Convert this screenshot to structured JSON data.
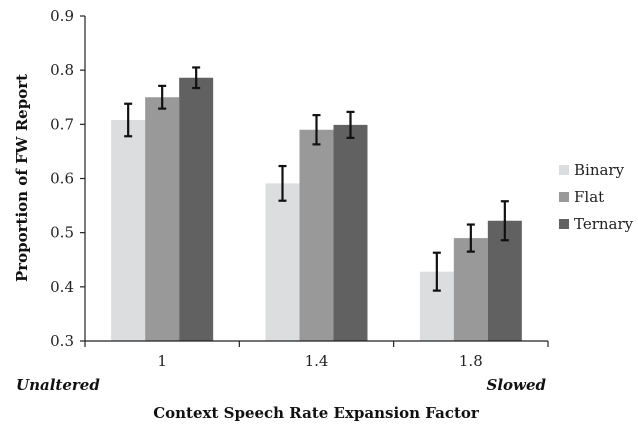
{
  "chart_data": {
    "type": "bar",
    "categories": [
      "1",
      "1.4",
      "1.8"
    ],
    "series": [
      {
        "name": "Binary",
        "color": "#dcdddf",
        "values": [
          0.708,
          0.591,
          0.428
        ],
        "error": [
          0.03,
          0.032,
          0.035
        ]
      },
      {
        "name": "Flat",
        "color": "#999999",
        "values": [
          0.75,
          0.69,
          0.49
        ],
        "error": [
          0.021,
          0.027,
          0.025
        ]
      },
      {
        "name": "Ternary",
        "color": "#616161",
        "values": [
          0.786,
          0.699,
          0.522
        ],
        "error": [
          0.019,
          0.024,
          0.036
        ]
      }
    ],
    "ylim": [
      0.3,
      0.9
    ],
    "yticks": [
      "0.3",
      "0.4",
      "0.5",
      "0.6",
      "0.7",
      "0.8",
      "0.9"
    ],
    "ylabel": "Proportion of FW Report",
    "xlabel": "Context Speech Rate Expansion Factor",
    "annotations": {
      "left": "Unaltered",
      "right": "Slowed"
    },
    "legend_position": "right",
    "grid": false
  }
}
